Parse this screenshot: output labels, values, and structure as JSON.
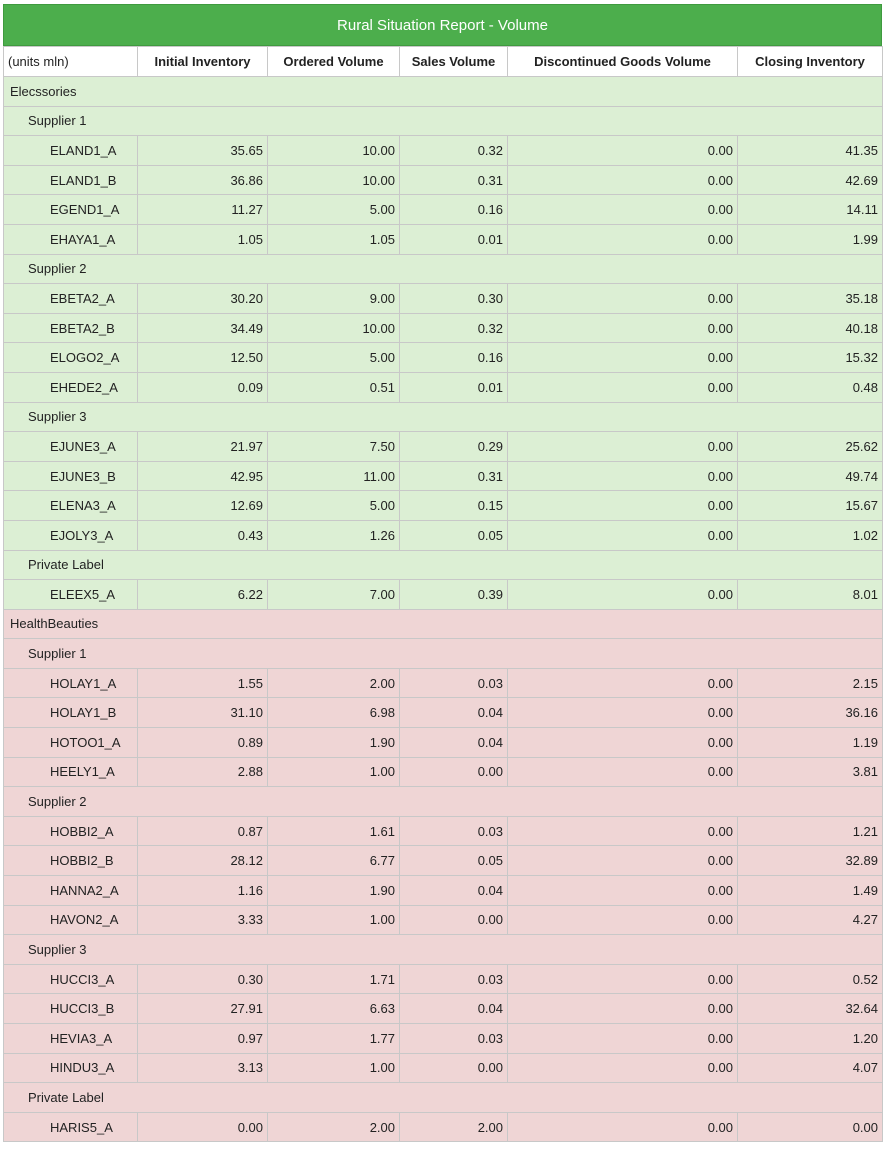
{
  "title": "Rural Situation Report - Volume",
  "columns": [
    "(units mln)",
    "Initial Inventory",
    "Ordered Volume",
    "Sales Volume",
    "Discontinued Goods Volume",
    "Closing Inventory"
  ],
  "colors": {
    "header_green": "#4cae4c",
    "group1_bg": "#dcefd4",
    "group2_bg": "#efd5d5"
  },
  "categories": [
    {
      "name": "Elecssories",
      "theme": "green",
      "suppliers": [
        {
          "name": "Supplier 1",
          "items": [
            {
              "code": "ELAND1_A",
              "values": [
                "35.65",
                "10.00",
                "0.32",
                "0.00",
                "41.35"
              ]
            },
            {
              "code": "ELAND1_B",
              "values": [
                "36.86",
                "10.00",
                "0.31",
                "0.00",
                "42.69"
              ]
            },
            {
              "code": "EGEND1_A",
              "values": [
                "11.27",
                "5.00",
                "0.16",
                "0.00",
                "14.11"
              ]
            },
            {
              "code": "EHAYA1_A",
              "values": [
                "1.05",
                "1.05",
                "0.01",
                "0.00",
                "1.99"
              ]
            }
          ]
        },
        {
          "name": "Supplier 2",
          "items": [
            {
              "code": "EBETA2_A",
              "values": [
                "30.20",
                "9.00",
                "0.30",
                "0.00",
                "35.18"
              ]
            },
            {
              "code": "EBETA2_B",
              "values": [
                "34.49",
                "10.00",
                "0.32",
                "0.00",
                "40.18"
              ]
            },
            {
              "code": "ELOGO2_A",
              "values": [
                "12.50",
                "5.00",
                "0.16",
                "0.00",
                "15.32"
              ]
            },
            {
              "code": "EHEDE2_A",
              "values": [
                "0.09",
                "0.51",
                "0.01",
                "0.00",
                "0.48"
              ]
            }
          ]
        },
        {
          "name": "Supplier 3",
          "items": [
            {
              "code": "EJUNE3_A",
              "values": [
                "21.97",
                "7.50",
                "0.29",
                "0.00",
                "25.62"
              ]
            },
            {
              "code": "EJUNE3_B",
              "values": [
                "42.95",
                "11.00",
                "0.31",
                "0.00",
                "49.74"
              ]
            },
            {
              "code": "ELENA3_A",
              "values": [
                "12.69",
                "5.00",
                "0.15",
                "0.00",
                "15.67"
              ]
            },
            {
              "code": "EJOLY3_A",
              "values": [
                "0.43",
                "1.26",
                "0.05",
                "0.00",
                "1.02"
              ]
            }
          ]
        },
        {
          "name": "Private Label",
          "items": [
            {
              "code": "ELEEX5_A",
              "values": [
                "6.22",
                "7.00",
                "0.39",
                "0.00",
                "8.01"
              ]
            }
          ]
        }
      ]
    },
    {
      "name": "HealthBeauties",
      "theme": "red",
      "suppliers": [
        {
          "name": "Supplier 1",
          "items": [
            {
              "code": "HOLAY1_A",
              "values": [
                "1.55",
                "2.00",
                "0.03",
                "0.00",
                "2.15"
              ]
            },
            {
              "code": "HOLAY1_B",
              "values": [
                "31.10",
                "6.98",
                "0.04",
                "0.00",
                "36.16"
              ]
            },
            {
              "code": "HOTOO1_A",
              "values": [
                "0.89",
                "1.90",
                "0.04",
                "0.00",
                "1.19"
              ]
            },
            {
              "code": "HEELY1_A",
              "values": [
                "2.88",
                "1.00",
                "0.00",
                "0.00",
                "3.81"
              ]
            }
          ]
        },
        {
          "name": "Supplier 2",
          "items": [
            {
              "code": "HOBBI2_A",
              "values": [
                "0.87",
                "1.61",
                "0.03",
                "0.00",
                "1.21"
              ]
            },
            {
              "code": "HOBBI2_B",
              "values": [
                "28.12",
                "6.77",
                "0.05",
                "0.00",
                "32.89"
              ]
            },
            {
              "code": "HANNA2_A",
              "values": [
                "1.16",
                "1.90",
                "0.04",
                "0.00",
                "1.49"
              ]
            },
            {
              "code": "HAVON2_A",
              "values": [
                "3.33",
                "1.00",
                "0.00",
                "0.00",
                "4.27"
              ]
            }
          ]
        },
        {
          "name": "Supplier 3",
          "items": [
            {
              "code": "HUCCI3_A",
              "values": [
                "0.30",
                "1.71",
                "0.03",
                "0.00",
                "0.52"
              ]
            },
            {
              "code": "HUCCI3_B",
              "values": [
                "27.91",
                "6.63",
                "0.04",
                "0.00",
                "32.64"
              ]
            },
            {
              "code": "HEVIA3_A",
              "values": [
                "0.97",
                "1.77",
                "0.03",
                "0.00",
                "1.20"
              ]
            },
            {
              "code": "HINDU3_A",
              "values": [
                "3.13",
                "1.00",
                "0.00",
                "0.00",
                "4.07"
              ]
            }
          ]
        },
        {
          "name": "Private Label",
          "items": [
            {
              "code": "HARIS5_A",
              "values": [
                "0.00",
                "2.00",
                "2.00",
                "0.00",
                "0.00"
              ]
            }
          ]
        }
      ]
    }
  ]
}
